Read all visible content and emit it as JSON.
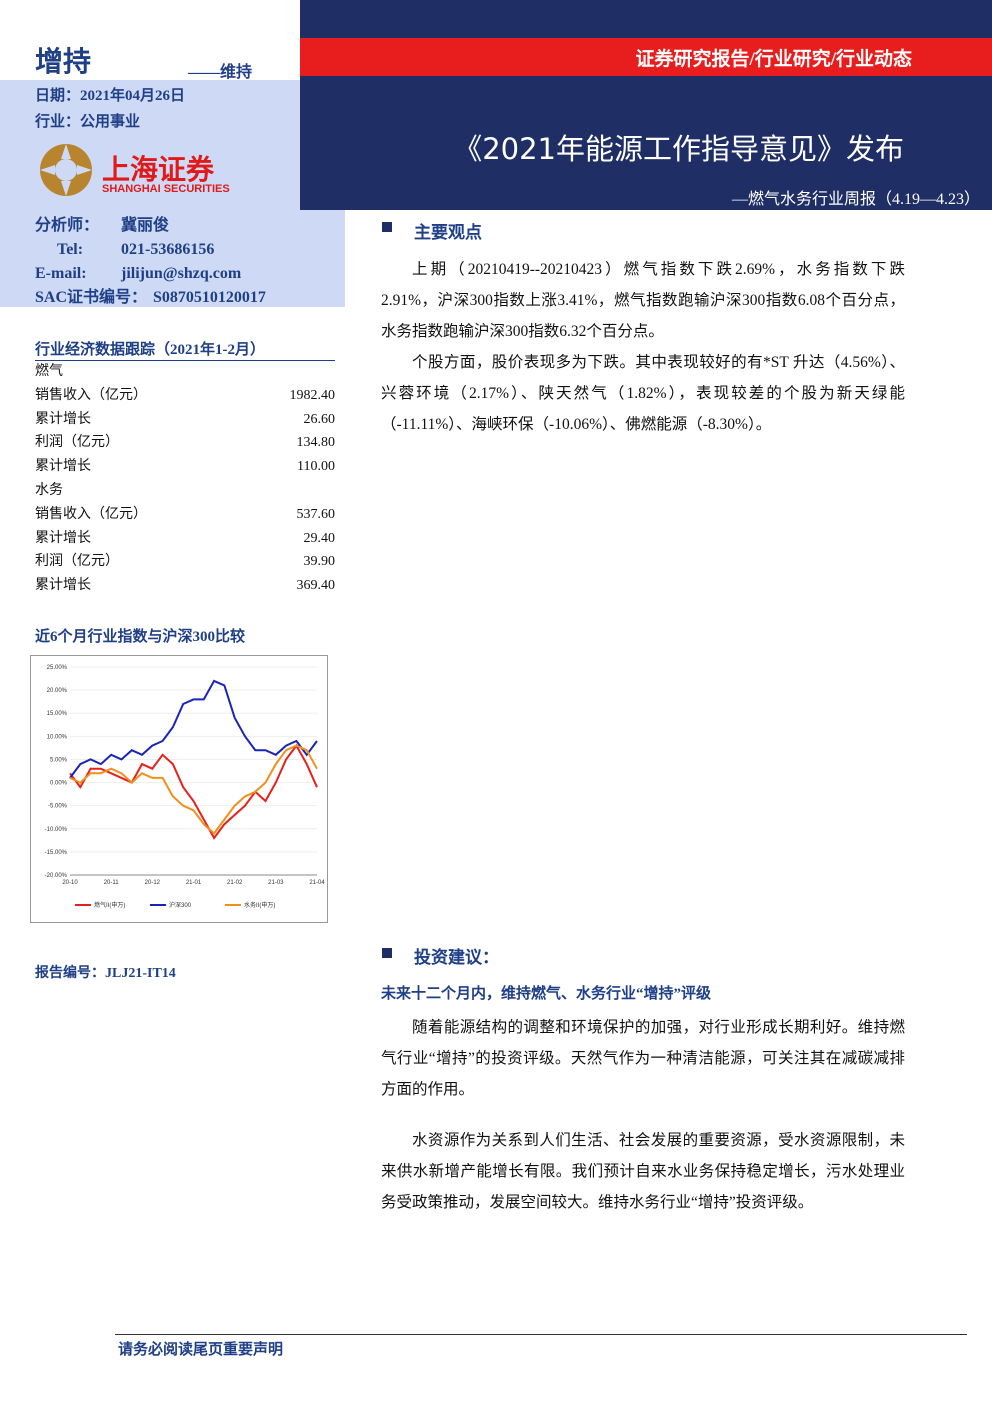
{
  "header": {
    "rating": "增持",
    "rating_change": "——维持",
    "report_type": "证券研究报告/行业研究/行业动态",
    "date": "日期：2021年04月26日",
    "industry": "行业：公用事业",
    "logo_cn": "上海证券",
    "logo_en": "SHANGHAI SECURITIES",
    "title": "《2021年能源工作指导意见》发布",
    "subtitle": "—燃气水务行业周报（4.19—4.23）"
  },
  "analyst": [
    [
      "分析师：",
      "冀丽俊"
    ],
    [
      "Tel:",
      "021-53686156"
    ],
    [
      "E-mail:",
      "jilijun@shzq.com"
    ],
    [
      "SAC证书编号：",
      "S0870510120017"
    ]
  ],
  "econ": {
    "title": "行业经济数据跟踪（2021年1-2月）",
    "rows": [
      [
        "燃气",
        ""
      ],
      [
        "销售收入（亿元）",
        "1982.40"
      ],
      [
        "累计增长",
        "26.60"
      ],
      [
        "利润（亿元）",
        "134.80"
      ],
      [
        "累计增长",
        "110.00"
      ],
      [
        "水务",
        ""
      ],
      [
        "销售收入（亿元）",
        "537.60"
      ],
      [
        "累计增长",
        "29.40"
      ],
      [
        "利润（亿元）",
        "39.90"
      ],
      [
        "累计增长",
        "369.40"
      ]
    ]
  },
  "chart_data": {
    "type": "line",
    "title": "近6个月行业指数与沪深300比较",
    "categories": [
      "20-10",
      null,
      null,
      null,
      "20-11",
      null,
      null,
      null,
      "20-12",
      null,
      null,
      null,
      "21-01",
      null,
      null,
      null,
      "21-02",
      null,
      null,
      null,
      "21-03",
      null,
      null,
      null,
      "21-04"
    ],
    "series": [
      {
        "name": "燃气II(申万)",
        "color": "#e8201a",
        "values": [
          2,
          -1,
          3,
          3,
          2,
          1,
          0,
          4,
          3,
          6,
          4,
          -1,
          -4,
          -8,
          -12,
          -9,
          -7,
          -5,
          -2,
          -4,
          0,
          5,
          8,
          4,
          -1
        ]
      },
      {
        "name": "沪深300",
        "color": "#1a24b8",
        "values": [
          1,
          4,
          5,
          4,
          6,
          5,
          7,
          6,
          8,
          9,
          12,
          17,
          18,
          18,
          22,
          21,
          14,
          10,
          7,
          7,
          6,
          8,
          9,
          6,
          9
        ]
      },
      {
        "name": "水务II(申万)",
        "color": "#f0901a",
        "values": [
          1,
          0,
          2,
          2,
          3,
          2,
          0,
          2,
          1,
          1,
          -3,
          -5,
          -6,
          -9,
          -11,
          -8,
          -5,
          -3,
          -2,
          0,
          4,
          7,
          8,
          7,
          3
        ]
      }
    ],
    "ylim": [
      -20,
      25
    ],
    "yticks": [
      {
        "value": -20,
        "label": "-20.00%"
      },
      {
        "value": -15,
        "label": "-15.00%"
      },
      {
        "value": -10,
        "label": "-10.00%"
      },
      {
        "value": -5,
        "label": "-5.00%"
      },
      {
        "value": 0,
        "label": "0.00%"
      },
      {
        "value": 5,
        "label": "5.00%"
      },
      {
        "value": 10,
        "label": "10.00%"
      },
      {
        "value": 15,
        "label": "15.00%"
      },
      {
        "value": 20,
        "label": "20.00%"
      },
      {
        "value": 25,
        "label": "25.00%"
      }
    ]
  },
  "report_no": "报告编号：JLJ21-IT14",
  "body": {
    "s1_heading": "主要观点",
    "s1_paragraphs": [
      "上期（20210419--20210423）燃气指数下跌2.69%，水务指数下跌2.91%，沪深300指数上涨3.41%，燃气指数跑输沪深300指数6.08个百分点，水务指数跑输沪深300指数6.32个百分点。",
      "个股方面，股价表现多为下跌。其中表现较好的有*ST 升达（4.56%）、兴蓉环境（2.17%）、陕天然气（1.82%），表现较差的个股为新天绿能（-11.11%）、海峡环保（-10.06%）、佛燃能源（-8.30%）。"
    ],
    "s2_heading": "投资建议：",
    "s2_subheading": "未来十二个月内，维持燃气、水务行业“增持”评级",
    "s2_paragraphs": [
      "随着能源结构的调整和环境保护的加强，对行业形成长期利好。维持燃气行业“增持”的投资评级。天然气作为一种清洁能源，可关注其在减碳减排方面的作用。",
      "水资源作为关系到人们生活、社会发展的重要资源，受水资源限制，未来供水新增产能增长有限。我们预计自来水业务保持稳定增长，污水处理业务受政策推动，发展空间较大。维持水务行业“增持”投资评级。"
    ]
  },
  "footer": "请务必阅读尾页重要声明"
}
